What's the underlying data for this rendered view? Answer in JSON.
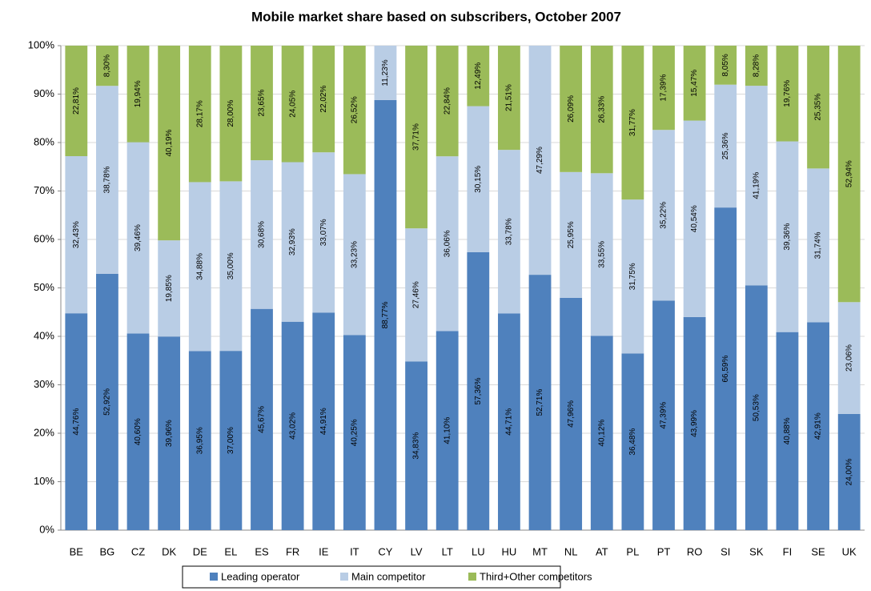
{
  "chart_data": {
    "type": "stacked_bar",
    "title": "Mobile market share based on subscribers, October 2007",
    "categories": [
      "BE",
      "BG",
      "CZ",
      "DK",
      "DE",
      "EL",
      "ES",
      "FR",
      "IE",
      "IT",
      "CY",
      "LV",
      "LT",
      "LU",
      "HU",
      "MT",
      "NL",
      "AT",
      "PL",
      "PT",
      "RO",
      "SI",
      "SK",
      "FI",
      "SE",
      "UK"
    ],
    "series": [
      {
        "name": "Leading operator",
        "color": "#4f81bd",
        "values": [
          44.76,
          52.92,
          40.6,
          39.96,
          36.95,
          37.0,
          45.67,
          43.02,
          44.91,
          40.25,
          88.77,
          34.83,
          41.1,
          57.36,
          44.71,
          52.71,
          47.96,
          40.12,
          36.48,
          47.39,
          43.99,
          66.59,
          50.53,
          40.88,
          42.91,
          24.0
        ],
        "value_labels": [
          "44,76%",
          "52,92%",
          "40,60%",
          "39,96%",
          "36,95%",
          "37,00%",
          "45,67%",
          "43,02%",
          "44,91%",
          "40,25%",
          "88,77%",
          "34,83%",
          "41,10%",
          "57,36%",
          "44,71%",
          "52,71%",
          "47,96%",
          "40,12%",
          "36,48%",
          "47,39%",
          "43,99%",
          "66,59%",
          "50,53%",
          "40,88%",
          "42,91%",
          "24,00%"
        ]
      },
      {
        "name": "Main competitor",
        "color": "#b9cde5",
        "values": [
          32.43,
          38.78,
          39.46,
          19.85,
          34.88,
          35.0,
          30.68,
          32.93,
          33.07,
          33.23,
          11.23,
          27.46,
          36.06,
          30.15,
          33.78,
          47.29,
          25.95,
          33.55,
          31.75,
          35.22,
          40.54,
          25.36,
          41.19,
          39.36,
          31.74,
          23.06
        ],
        "value_labels": [
          "32,43%",
          "38,78%",
          "39,46%",
          "19,85%",
          "34,88%",
          "35,00%",
          "30,68%",
          "32,93%",
          "33,07%",
          "33,23%",
          "11,23%",
          "27,46%",
          "36,06%",
          "30,15%",
          "33,78%",
          "47,29%",
          "25,95%",
          "33,55%",
          "31,75%",
          "35,22%",
          "40,54%",
          "25,36%",
          "41,19%",
          "39,36%",
          "31,74%",
          "23,06%"
        ]
      },
      {
        "name": "Third+Other competitors",
        "color": "#9bbb59",
        "values": [
          22.81,
          8.3,
          19.94,
          40.19,
          28.17,
          28.0,
          23.65,
          24.05,
          22.02,
          26.52,
          null,
          37.71,
          22.84,
          12.49,
          21.51,
          null,
          26.09,
          26.33,
          31.77,
          17.39,
          15.47,
          8.05,
          8.28,
          19.76,
          25.35,
          52.94
        ],
        "value_labels": [
          "22,81%",
          "8,30%",
          "19,94%",
          "40,19%",
          "28,17%",
          "28,00%",
          "23,65%",
          "24,05%",
          "22,02%",
          "26,52%",
          null,
          "37,71%",
          "22,84%",
          "12,49%",
          "21,51%",
          null,
          "26,09%",
          "26,33%",
          "31,77%",
          "17,39%",
          "15,47%",
          "8,05%",
          "8,28%",
          "19,76%",
          "25,35%",
          "52,94%"
        ]
      }
    ],
    "ylim": [
      0,
      100
    ],
    "yticks": [
      {
        "value": 0,
        "label": "0%"
      },
      {
        "value": 10,
        "label": "10%"
      },
      {
        "value": 20,
        "label": "20%"
      },
      {
        "value": 30,
        "label": "30%"
      },
      {
        "value": 40,
        "label": "40%"
      },
      {
        "value": 50,
        "label": "50%"
      },
      {
        "value": 60,
        "label": "60%"
      },
      {
        "value": 70,
        "label": "70%"
      },
      {
        "value": 80,
        "label": "80%"
      },
      {
        "value": 90,
        "label": "90%"
      },
      {
        "value": 100,
        "label": "100%"
      }
    ],
    "grid": true
  }
}
